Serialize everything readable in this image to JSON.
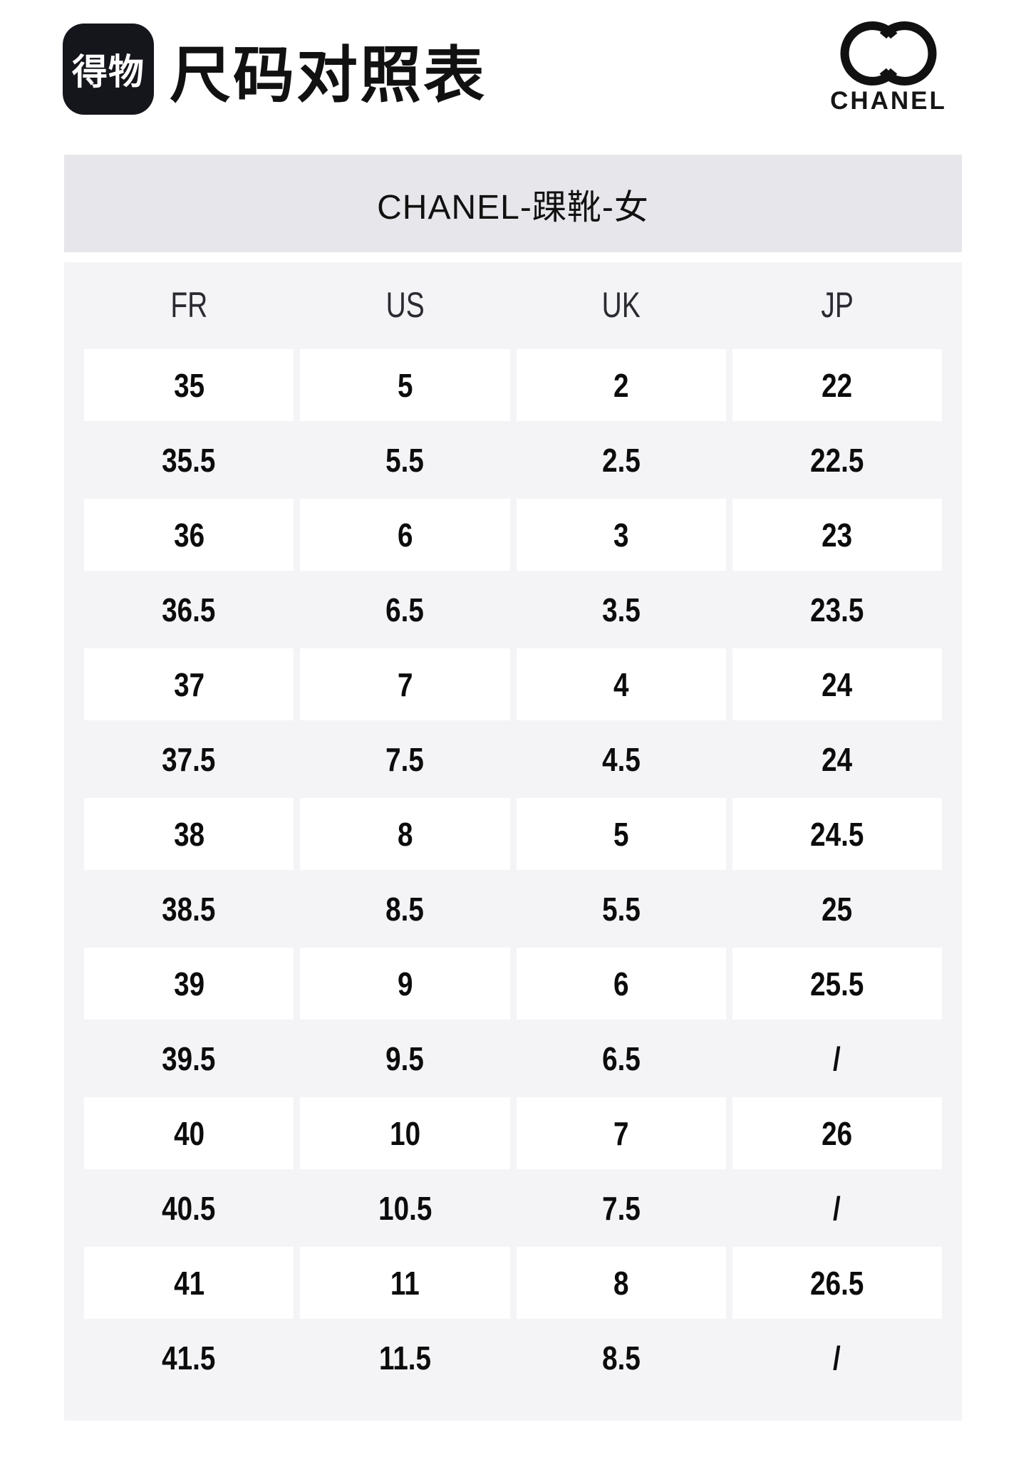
{
  "page": {
    "title": "尺码对照表"
  },
  "dewu_logo": {
    "text": "得物"
  },
  "chanel": {
    "brand": "CHANEL",
    "icon": "interlocking-cc-icon"
  },
  "banner": {
    "title": "CHANEL-踝靴-女"
  },
  "table": {
    "headers": [
      "FR",
      "US",
      "UK",
      "JP"
    ],
    "rows": [
      [
        "35",
        "5",
        "2",
        "22"
      ],
      [
        "35.5",
        "5.5",
        "2.5",
        "22.5"
      ],
      [
        "36",
        "6",
        "3",
        "23"
      ],
      [
        "36.5",
        "6.5",
        "3.5",
        "23.5"
      ],
      [
        "37",
        "7",
        "4",
        "24"
      ],
      [
        "37.5",
        "7.5",
        "4.5",
        "24"
      ],
      [
        "38",
        "8",
        "5",
        "24.5"
      ],
      [
        "38.5",
        "8.5",
        "5.5",
        "25"
      ],
      [
        "39",
        "9",
        "6",
        "25.5"
      ],
      [
        "39.5",
        "9.5",
        "6.5",
        "/"
      ],
      [
        "40",
        "10",
        "7",
        "26"
      ],
      [
        "40.5",
        "10.5",
        "7.5",
        "/"
      ],
      [
        "41",
        "11",
        "8",
        "26.5"
      ],
      [
        "41.5",
        "11.5",
        "8.5",
        "/"
      ]
    ]
  },
  "colors": {
    "banner_bg": "#e6e6eb",
    "table_bg": "#f4f4f7",
    "row_card_bg": "#ffffff",
    "text": "#0c0c0c",
    "logo_bg": "#15151c"
  }
}
